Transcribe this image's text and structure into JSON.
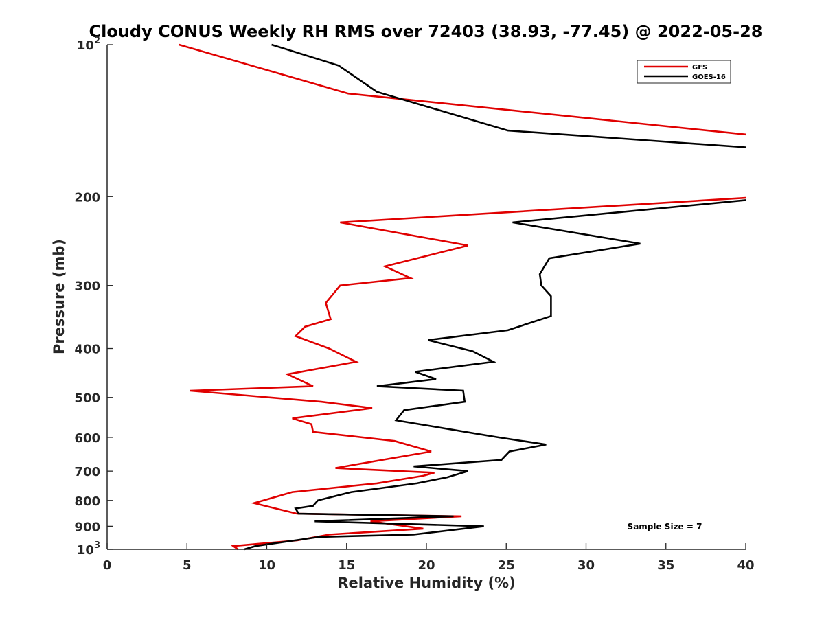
{
  "chart_data": {
    "type": "line",
    "title": "Cloudy CONUS Weekly RH RMS over 72403 (38.93, -77.45) @ 2022-05-28",
    "xlabel": "Relative Humidity (%)",
    "ylabel": "Pressure (mb)",
    "xlim": [
      0,
      40
    ],
    "ylim": [
      100,
      1000
    ],
    "y_scale": "log",
    "y_reversed": true,
    "grid": false,
    "legend_position": "top-right",
    "x_ticks": [
      {
        "value": 0,
        "label": "0"
      },
      {
        "value": 5,
        "label": "5"
      },
      {
        "value": 10,
        "label": "10"
      },
      {
        "value": 15,
        "label": "15"
      },
      {
        "value": 20,
        "label": "20"
      },
      {
        "value": 25,
        "label": "25"
      },
      {
        "value": 30,
        "label": "30"
      },
      {
        "value": 35,
        "label": "35"
      },
      {
        "value": 40,
        "label": "40"
      }
    ],
    "y_ticks": [
      {
        "value": 100,
        "base": "10",
        "exp": "2"
      },
      {
        "value": 200,
        "label": "200"
      },
      {
        "value": 300,
        "label": "300"
      },
      {
        "value": 400,
        "label": "400"
      },
      {
        "value": 500,
        "label": "500"
      },
      {
        "value": 600,
        "label": "600"
      },
      {
        "value": 700,
        "label": "700"
      },
      {
        "value": 800,
        "label": "800"
      },
      {
        "value": 900,
        "label": "900"
      },
      {
        "value": 1000,
        "base": "10",
        "exp": "3"
      }
    ],
    "series": [
      {
        "name": "GFS",
        "color": "#e00000",
        "points": [
          [
            4.5,
            100
          ],
          [
            15.1,
            125
          ],
          [
            40.3,
            151
          ],
          [
            40.2,
            201
          ],
          [
            14.6,
            225
          ],
          [
            22.6,
            250
          ],
          [
            17.4,
            275
          ],
          [
            19.0,
            290
          ],
          [
            14.6,
            300
          ],
          [
            13.7,
            325
          ],
          [
            14.0,
            350
          ],
          [
            12.4,
            362
          ],
          [
            11.8,
            378
          ],
          [
            13.9,
            400
          ],
          [
            15.6,
            425
          ],
          [
            11.3,
            450
          ],
          [
            12.9,
            475
          ],
          [
            5.2,
            485
          ],
          [
            13.4,
            510
          ],
          [
            16.6,
            525
          ],
          [
            11.6,
            550
          ],
          [
            12.8,
            565
          ],
          [
            12.9,
            585
          ],
          [
            18.0,
            610
          ],
          [
            20.3,
            640
          ],
          [
            14.3,
            690
          ],
          [
            20.5,
            705
          ],
          [
            19.8,
            715
          ],
          [
            16.9,
            740
          ],
          [
            11.6,
            770
          ],
          [
            9.2,
            810
          ],
          [
            11.9,
            850
          ],
          [
            22.2,
            860
          ],
          [
            16.5,
            880
          ],
          [
            19.8,
            910
          ],
          [
            13.9,
            935
          ],
          [
            11.9,
            960
          ],
          [
            7.9,
            985
          ],
          [
            8.2,
            1000
          ]
        ]
      },
      {
        "name": "GOES-16",
        "color": "#000000",
        "points": [
          [
            10.3,
            100
          ],
          [
            14.5,
            110
          ],
          [
            16.9,
            124
          ],
          [
            25.1,
            148
          ],
          [
            40.3,
            160
          ],
          [
            40.2,
            203
          ],
          [
            25.4,
            225
          ],
          [
            33.4,
            248
          ],
          [
            27.7,
            265
          ],
          [
            27.1,
            285
          ],
          [
            27.2,
            300
          ],
          [
            27.8,
            315
          ],
          [
            27.8,
            345
          ],
          [
            25.1,
            368
          ],
          [
            20.1,
            385
          ],
          [
            22.9,
            405
          ],
          [
            24.2,
            425
          ],
          [
            19.3,
            445
          ],
          [
            20.6,
            460
          ],
          [
            16.9,
            475
          ],
          [
            22.3,
            485
          ],
          [
            22.4,
            510
          ],
          [
            18.6,
            530
          ],
          [
            18.1,
            555
          ],
          [
            24.5,
            600
          ],
          [
            27.5,
            620
          ],
          [
            25.2,
            640
          ],
          [
            24.7,
            665
          ],
          [
            19.2,
            685
          ],
          [
            22.6,
            700
          ],
          [
            21.3,
            720
          ],
          [
            19.4,
            740
          ],
          [
            15.3,
            770
          ],
          [
            13.2,
            800
          ],
          [
            12.9,
            820
          ],
          [
            11.8,
            830
          ],
          [
            12.0,
            850
          ],
          [
            21.7,
            860
          ],
          [
            13.0,
            880
          ],
          [
            23.6,
            900
          ],
          [
            19.2,
            935
          ],
          [
            13.3,
            945
          ],
          [
            9.3,
            985
          ],
          [
            8.6,
            1000
          ]
        ]
      }
    ],
    "annotations": [
      {
        "text": "Sample Size = 7"
      }
    ]
  }
}
